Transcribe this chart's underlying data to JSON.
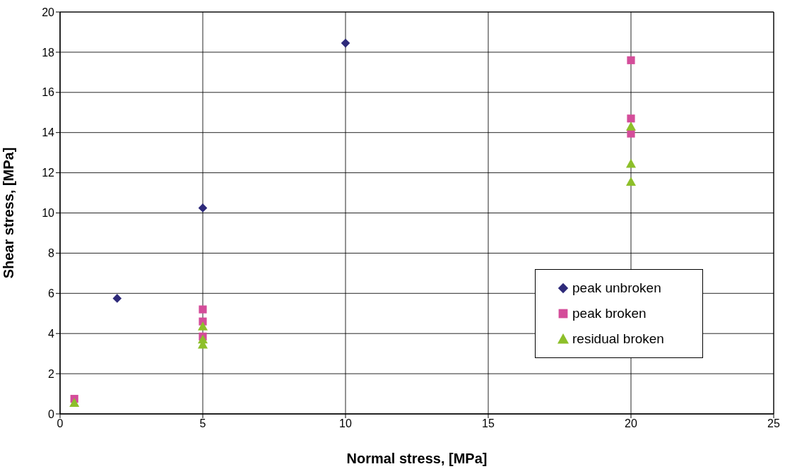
{
  "chart_data": {
    "type": "scatter",
    "xlabel": "Normal stress, [MPa]",
    "ylabel": "Shear stress, [MPa]",
    "xlim": [
      0,
      25
    ],
    "xticks": [
      0,
      5,
      10,
      15,
      20,
      25
    ],
    "ylim": [
      0,
      20
    ],
    "yticks": [
      0,
      2,
      4,
      6,
      8,
      10,
      12,
      14,
      16,
      18,
      20
    ],
    "grid": true,
    "legend": "right",
    "series": [
      {
        "name": "peak unbroken",
        "color": "#2e2a7a",
        "marker": "diamond",
        "x": [
          2,
          5,
          10
        ],
        "values": [
          5.75,
          10.25,
          18.45
        ]
      },
      {
        "name": "peak broken",
        "color": "#d44d9a",
        "marker": "square",
        "x": [
          0.5,
          5,
          5,
          5,
          20,
          20,
          20
        ],
        "values": [
          0.75,
          5.2,
          4.6,
          3.85,
          17.6,
          14.7,
          13.95
        ]
      },
      {
        "name": "residual broken",
        "color": "#8dbf2a",
        "marker": "triangle",
        "x": [
          0.5,
          5,
          5,
          5,
          20,
          20,
          20
        ],
        "values": [
          0.55,
          4.35,
          3.7,
          3.45,
          14.3,
          12.45,
          11.55
        ]
      }
    ]
  }
}
